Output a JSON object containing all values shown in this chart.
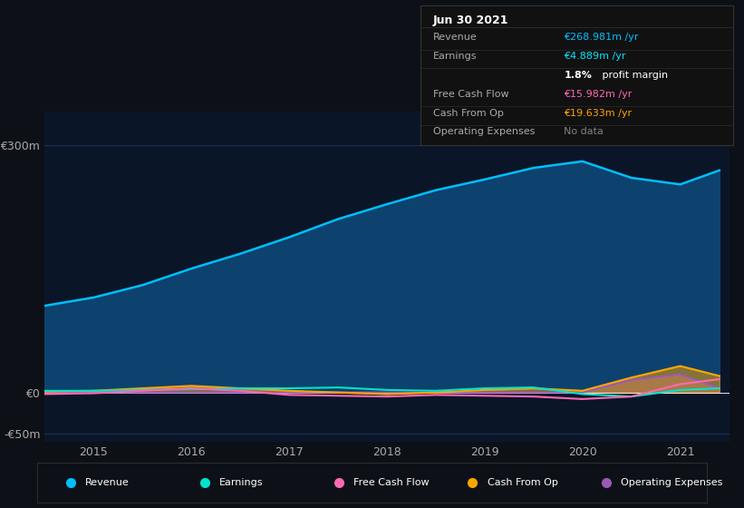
{
  "bg_color": "#0d1117",
  "plot_bg_color": "#0a1628",
  "grid_color": "#1e3050",
  "title_box": {
    "title": "Jun 30 2021",
    "rows": [
      {
        "label": "Revenue",
        "value": "€268.981m /yr",
        "value_color": "#00bfff"
      },
      {
        "label": "Earnings",
        "value": "€4.889m /yr",
        "value_color": "#00e5ff"
      },
      {
        "label": "",
        "value": "1.8% profit margin",
        "value_color": "#ffffff"
      },
      {
        "label": "Free Cash Flow",
        "value": "€15.982m /yr",
        "value_color": "#ff69b4"
      },
      {
        "label": "Cash From Op",
        "value": "€19.633m /yr",
        "value_color": "#ffa500"
      },
      {
        "label": "Operating Expenses",
        "value": "No data",
        "value_color": "#808080"
      }
    ]
  },
  "years": [
    2014.5,
    2015.0,
    2015.5,
    2016.0,
    2016.5,
    2017.0,
    2017.5,
    2018.0,
    2018.5,
    2019.0,
    2019.5,
    2020.0,
    2020.5,
    2021.0,
    2021.4
  ],
  "revenue": [
    105,
    115,
    130,
    150,
    168,
    188,
    210,
    228,
    245,
    258,
    272,
    280,
    260,
    252,
    269
  ],
  "earnings": [
    2,
    2,
    3,
    4,
    5,
    5,
    6,
    3,
    2,
    5,
    6,
    -2,
    -5,
    3,
    5
  ],
  "free_cf": [
    -2,
    -1,
    2,
    5,
    2,
    -3,
    -4,
    -5,
    -3,
    -4,
    -5,
    -8,
    -5,
    10,
    16
  ],
  "cash_from_op": [
    1,
    2,
    5,
    8,
    5,
    2,
    0,
    -2,
    0,
    3,
    5,
    2,
    18,
    32,
    20
  ],
  "op_expenses": [
    0,
    0,
    0,
    0,
    0,
    0,
    0,
    0,
    0,
    0,
    0,
    0,
    15,
    22,
    5
  ],
  "ylim": [
    -60,
    340
  ],
  "yticks": [
    -50,
    0,
    300
  ],
  "ytick_labels": [
    "-€50m",
    "€0",
    "€300m"
  ],
  "xticks": [
    2015,
    2016,
    2017,
    2018,
    2019,
    2020,
    2021
  ],
  "revenue_color": "#00bfff",
  "revenue_fill": "#0d4a7a",
  "earnings_color": "#00e5cc",
  "free_cf_color": "#ff69b4",
  "cash_op_color": "#ffa500",
  "op_exp_color": "#9b59b6",
  "legend_items": [
    {
      "label": "Revenue",
      "color": "#00bfff"
    },
    {
      "label": "Earnings",
      "color": "#00e5cc"
    },
    {
      "label": "Free Cash Flow",
      "color": "#ff69b4"
    },
    {
      "label": "Cash From Op",
      "color": "#ffa500"
    },
    {
      "label": "Operating Expenses",
      "color": "#9b59b6"
    }
  ]
}
